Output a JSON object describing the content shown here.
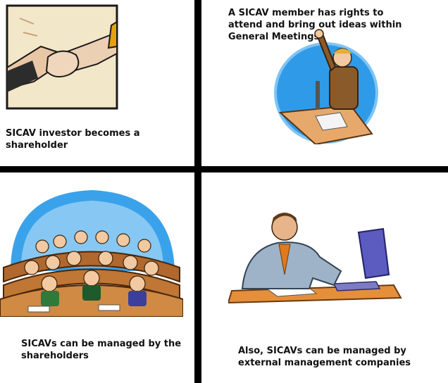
{
  "panels": [
    {
      "caption": "SICAV investor becomes a shareholder",
      "illustration": "handshake-clipart"
    },
    {
      "caption": "A SICAV member has rights to attend and bring out ideas within General Meetings",
      "illustration": "speaker-at-podium-clipart"
    },
    {
      "caption": "SICAVs can be managed by the shareholders",
      "illustration": "meeting-audience-clipart"
    },
    {
      "caption": "Also, SICAVs can be managed by external management companies",
      "illustration": "businessman-at-computer-clipart"
    }
  ]
}
